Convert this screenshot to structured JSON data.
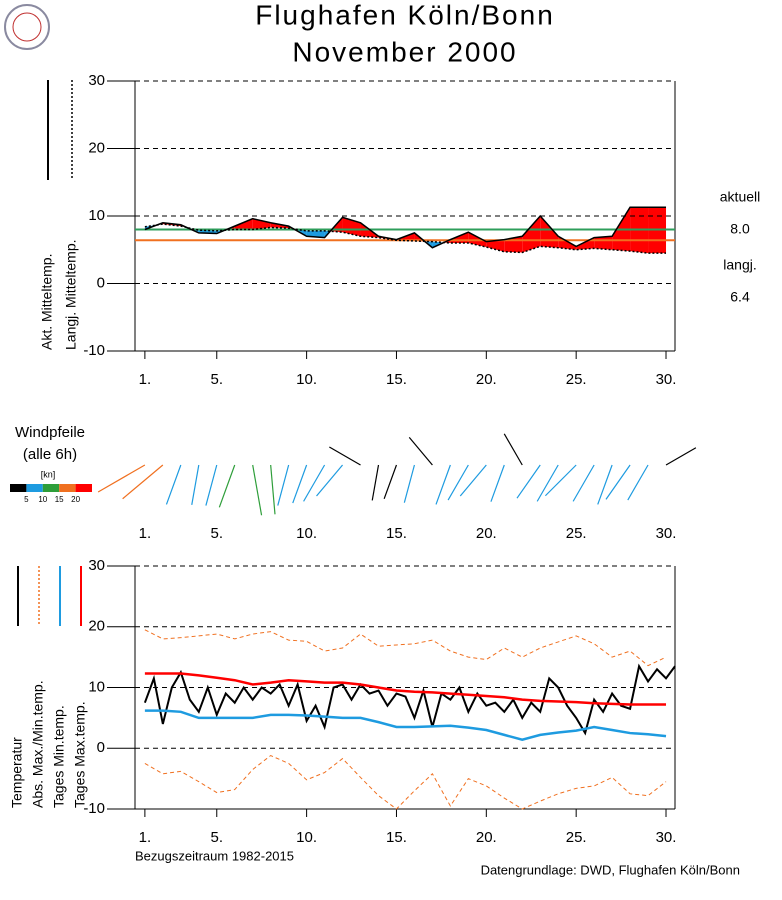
{
  "header": {
    "title": "Flughafen Köln/Bonn",
    "subtitle": "November  2000"
  },
  "footer": {
    "left": "Bezugszeitraum 1982-2015",
    "right": "Datengrundlage: DWD, Flughafen Köln/Bonn"
  },
  "chart_data": [
    {
      "type": "line_fill",
      "x": [
        1,
        2,
        3,
        4,
        5,
        6,
        7,
        8,
        9,
        10,
        11,
        12,
        13,
        14,
        15,
        16,
        17,
        18,
        19,
        20,
        21,
        22,
        23,
        24,
        25,
        26,
        27,
        28,
        29,
        30
      ],
      "series": [
        {
          "name": "Akt. Mitteltemp.",
          "color": "#000000",
          "values": [
            8.0,
            9.0,
            8.7,
            7.5,
            7.4,
            8.5,
            9.6,
            9.0,
            8.5,
            7.0,
            6.8,
            9.8,
            9.0,
            7.0,
            6.5,
            7.5,
            5.3,
            6.5,
            7.6,
            6.2,
            6.5,
            7.0,
            10.0,
            7.0,
            5.5,
            6.8,
            7.0,
            11.3,
            11.3,
            11.3
          ]
        },
        {
          "name": "Langj. Mitteltemp.",
          "color": "#000000",
          "dash": true,
          "values": [
            8.4,
            8.8,
            8.5,
            7.9,
            7.8,
            8.0,
            8.0,
            8.3,
            8.2,
            7.8,
            7.8,
            7.6,
            7.0,
            6.8,
            6.4,
            6.3,
            6.2,
            6.0,
            6.0,
            5.4,
            4.7,
            4.6,
            5.5,
            5.3,
            5.0,
            5.2,
            5.0,
            4.8,
            4.5,
            4.5
          ]
        }
      ],
      "fill_above": "#ff0000",
      "fill_below": "#1e9be0",
      "reference_lines": [
        {
          "name": "aktuell",
          "value": 8.0,
          "value_label": "8.0",
          "color": "#2e9e5b"
        },
        {
          "name": "langj.",
          "value": 6.4,
          "value_label": "6.4",
          "color": "#f07020"
        }
      ],
      "xlim": [
        0.45,
        30.5
      ],
      "xticks": [
        {
          "value": 1,
          "label": "1."
        },
        {
          "value": 5,
          "label": "5."
        },
        {
          "value": 10,
          "label": "10."
        },
        {
          "value": 15,
          "label": "15."
        },
        {
          "value": 20,
          "label": "20."
        },
        {
          "value": 25,
          "label": "25."
        },
        {
          "value": 30,
          "label": "30."
        }
      ],
      "ylim": [
        -10,
        30
      ],
      "yticks": [
        -10,
        0,
        10,
        20,
        30
      ],
      "grid": true
    },
    {
      "type": "wind",
      "title": "Windpfeile",
      "subtitle": "(alle 6h)",
      "x": [
        1,
        2,
        3,
        4,
        5,
        6,
        7,
        8,
        9,
        10,
        11,
        12,
        13,
        14,
        15,
        16,
        17,
        18,
        19,
        20,
        21,
        22,
        23,
        24,
        25,
        26,
        27,
        28,
        29,
        30
      ],
      "speed": [
        16,
        15,
        8,
        7,
        8,
        10,
        14,
        13,
        8,
        7,
        8,
        7,
        4,
        4,
        4,
        6,
        4,
        8,
        7,
        7,
        6,
        4,
        7,
        8,
        9,
        8,
        8,
        8,
        7,
        3
      ],
      "direction": [
        240,
        230,
        200,
        190,
        195,
        200,
        170,
        175,
        195,
        200,
        210,
        220,
        300,
        190,
        200,
        195,
        320,
        200,
        210,
        220,
        200,
        330,
        215,
        210,
        225,
        210,
        200,
        215,
        210,
        60
      ],
      "legend": {
        "title": "[kn]",
        "bins": [
          5,
          10,
          15,
          20
        ],
        "colors": [
          "#000000",
          "#1e9be0",
          "#2e9e3a",
          "#f07020",
          "#ff0000"
        ]
      },
      "xlim": [
        0.45,
        30.5
      ],
      "xticks": [
        {
          "value": 1,
          "label": "1."
        },
        {
          "value": 5,
          "label": "5."
        },
        {
          "value": 10,
          "label": "10."
        },
        {
          "value": 15,
          "label": "15."
        },
        {
          "value": 20,
          "label": "20."
        },
        {
          "value": 25,
          "label": "25."
        },
        {
          "value": 30,
          "label": "30."
        }
      ]
    },
    {
      "type": "line",
      "x": [
        1,
        2,
        3,
        4,
        5,
        6,
        7,
        8,
        9,
        10,
        11,
        12,
        13,
        14,
        15,
        16,
        17,
        18,
        19,
        20,
        21,
        22,
        23,
        24,
        25,
        26,
        27,
        28,
        29,
        30
      ],
      "series": [
        {
          "name": "Temperatur",
          "color": "#000000",
          "width": 2,
          "x": [
            1,
            1.5,
            2,
            2.5,
            3,
            3.5,
            4,
            4.5,
            5,
            5.5,
            6,
            6.5,
            7,
            7.5,
            8,
            8.5,
            9,
            9.5,
            10,
            10.5,
            11,
            11.5,
            12,
            12.5,
            13,
            13.5,
            14,
            14.5,
            15,
            15.5,
            16,
            16.5,
            17,
            17.5,
            18,
            18.5,
            19,
            19.5,
            20,
            20.5,
            21,
            21.5,
            22,
            22.5,
            23,
            23.5,
            24,
            24.5,
            25,
            25.5,
            26,
            26.5,
            27,
            27.5,
            28,
            28.5,
            29,
            29.5,
            30,
            30.5
          ],
          "values": [
            7.5,
            11.5,
            4.0,
            10.0,
            12.5,
            8.0,
            6.0,
            10.0,
            5.5,
            9.0,
            7.5,
            10.0,
            8.0,
            10.0,
            9.0,
            10.5,
            7.0,
            10.5,
            4.5,
            7.0,
            3.5,
            10.0,
            10.5,
            8.0,
            10.5,
            9.0,
            9.5,
            7.0,
            9.0,
            8.5,
            5.0,
            9.5,
            3.5,
            9.0,
            8.0,
            10.0,
            6.0,
            9.0,
            7.0,
            7.5,
            6.0,
            8.0,
            5.0,
            7.5,
            6.0,
            11.5,
            10.0,
            7.0,
            5.0,
            2.5,
            8.0,
            6.0,
            9.0,
            7.0,
            6.5,
            13.5,
            11.0,
            13.0,
            11.5,
            13.5
          ]
        },
        {
          "name": "Abs. Max./Min.temp.",
          "color": "#f07020",
          "dash": true,
          "width": 1,
          "values": [
            19.5,
            18.0,
            18.2,
            18.5,
            18.8,
            18.0,
            18.8,
            19.2,
            17.8,
            17.6,
            16.0,
            16.5,
            18.8,
            16.8,
            17.0,
            17.2,
            17.8,
            16.0,
            15.0,
            14.6,
            16.5,
            15.0,
            16.5,
            17.5,
            18.5,
            17.2,
            15.0,
            16.0,
            13.6,
            15.0
          ]
        },
        {
          "color": "#f07020",
          "dash": true,
          "width": 1,
          "values": [
            -2.5,
            -4.2,
            -3.8,
            -5.5,
            -7.3,
            -6.8,
            -3.5,
            -1.2,
            -2.5,
            -5.2,
            -4.0,
            -1.7,
            -4.8,
            -7.8,
            -10,
            -7.0,
            -4.2,
            -9.5,
            -5.0,
            -6.2,
            -8.2,
            -10,
            -8.7,
            -7.5,
            -6.6,
            -6.2,
            -4.8,
            -7.5,
            -7.8,
            -5.5
          ]
        },
        {
          "name": "Tages Min.temp.",
          "color": "#1e9be0",
          "width": 2.5,
          "values": [
            6.2,
            6.2,
            6.0,
            5.0,
            5.0,
            5.0,
            5.0,
            5.5,
            5.5,
            5.4,
            5.2,
            5.0,
            5.0,
            4.3,
            3.5,
            3.5,
            3.6,
            3.7,
            3.4,
            3.0,
            2.2,
            1.4,
            2.2,
            2.6,
            2.9,
            3.5,
            3.0,
            2.5,
            2.3,
            2.0
          ]
        },
        {
          "name": "Tages Max.temp.",
          "color": "#ff0000",
          "width": 2.5,
          "values": [
            12.3,
            12.3,
            12.3,
            12.0,
            11.6,
            11.2,
            10.5,
            10.8,
            11.2,
            11.0,
            10.8,
            10.8,
            10.5,
            10.0,
            9.5,
            9.3,
            9.2,
            9.0,
            8.8,
            8.6,
            8.4,
            8.0,
            7.8,
            7.7,
            7.6,
            7.4,
            7.3,
            7.2,
            7.2,
            7.2
          ]
        }
      ],
      "xlim": [
        0.45,
        30.5
      ],
      "xticks": [
        {
          "value": 1,
          "label": "1."
        },
        {
          "value": 5,
          "label": "5."
        },
        {
          "value": 10,
          "label": "10."
        },
        {
          "value": 15,
          "label": "15."
        },
        {
          "value": 20,
          "label": "20."
        },
        {
          "value": 25,
          "label": "25."
        },
        {
          "value": 30,
          "label": "30."
        }
      ],
      "ylim": [
        -10,
        30
      ],
      "yticks": [
        -10,
        0,
        10,
        20,
        30
      ],
      "grid": true
    }
  ]
}
